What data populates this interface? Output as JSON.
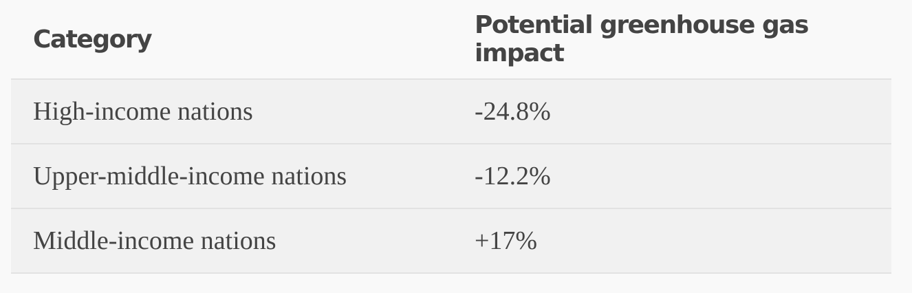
{
  "table": {
    "header": [
      "Category",
      "Potential greenhouse gas impact"
    ],
    "rows": [
      [
        "High-income nations",
        "-24.8%"
      ],
      [
        "Upper-middle-income nations",
        "-12.2%"
      ],
      [
        "Middle-income nations",
        "+17%"
      ]
    ]
  }
}
